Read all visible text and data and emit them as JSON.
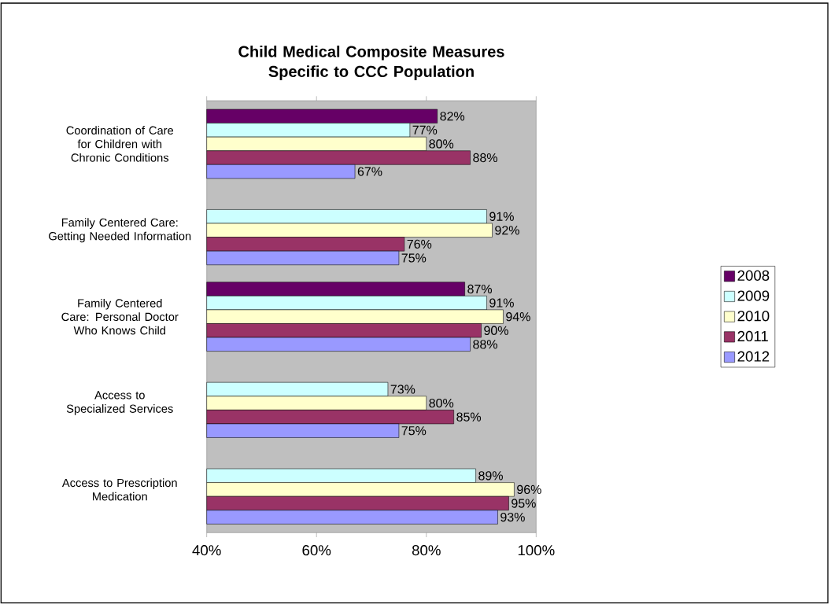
{
  "chart_data": {
    "type": "bar",
    "orientation": "horizontal",
    "title": "Child Medical Composite Measures Specific to CCC Population",
    "categories": [
      "Coordination of Care for Children with Chronic Conditions",
      "Family Centered Care: Getting Needed Information",
      "Family Centered Care: Personal Doctor Who Knows Child",
      "Access to Specialized Services",
      "Access to Prescription Medication"
    ],
    "series": [
      {
        "name": "2008",
        "color": "#660066",
        "values": [
          82,
          null,
          87,
          null,
          null
        ],
        "value_labels": [
          "82%",
          null,
          "87%",
          null,
          null
        ]
      },
      {
        "name": "2009",
        "color": "#ccffff",
        "values": [
          77,
          91,
          91,
          73,
          89
        ],
        "value_labels": [
          "77%",
          "91%",
          "91%",
          "73%",
          "89%"
        ]
      },
      {
        "name": "2010",
        "color": "#ffffcc",
        "values": [
          80,
          92,
          94,
          80,
          96
        ],
        "value_labels": [
          "80%",
          "92%",
          "94%",
          "80%",
          "96%"
        ]
      },
      {
        "name": "2011",
        "color": "#993366",
        "values": [
          88,
          76,
          90,
          85,
          95
        ],
        "value_labels": [
          "88%",
          "76%",
          "90%",
          "85%",
          "95%"
        ]
      },
      {
        "name": "2012",
        "color": "#9999ff",
        "values": [
          67,
          75,
          88,
          75,
          93
        ],
        "value_labels": [
          "67%",
          "75%",
          "88%",
          "75%",
          "93%"
        ]
      }
    ],
    "xlim": [
      40,
      100
    ],
    "xticks": [
      {
        "value": 40,
        "label": "40%"
      },
      {
        "value": 60,
        "label": "60%"
      },
      {
        "value": 80,
        "label": "80%"
      },
      {
        "value": 100,
        "label": "100%"
      }
    ],
    "grid": false,
    "legend": "right"
  }
}
